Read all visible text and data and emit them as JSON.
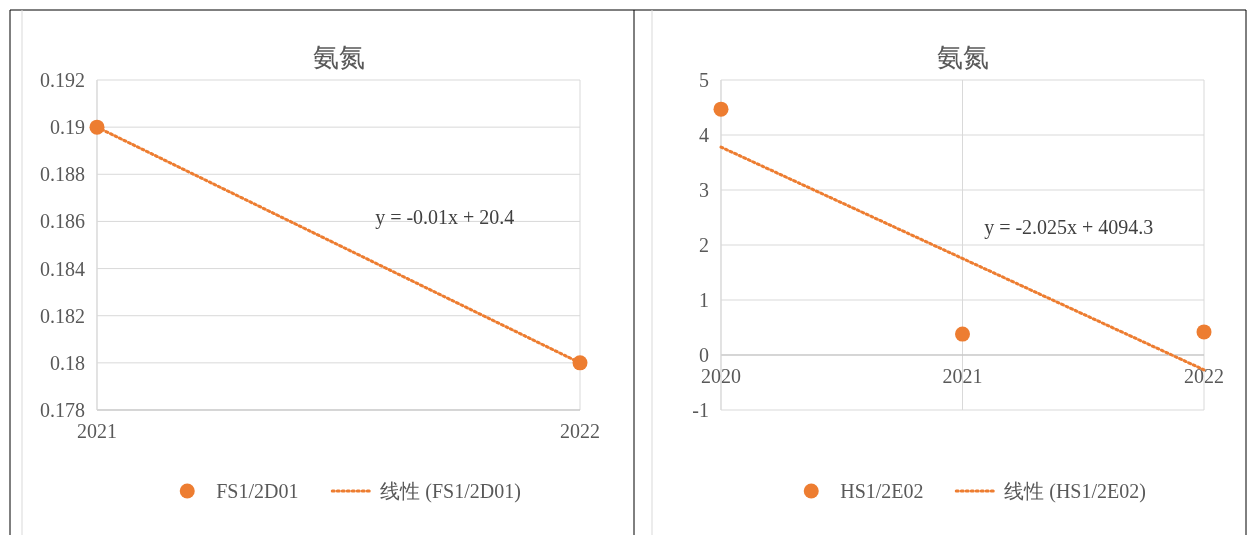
{
  "chart_data": [
    {
      "type": "scatter",
      "title": "氨氮",
      "xlim": [
        2021,
        2022
      ],
      "xticks": [
        2021,
        2022
      ],
      "ylim": [
        0.178,
        0.192
      ],
      "yticks": [
        0.178,
        0.18,
        0.182,
        0.184,
        0.186,
        0.188,
        0.19,
        0.192
      ],
      "grid": true,
      "legend": "bottom",
      "series": [
        {
          "name": "FS1/2D01",
          "color": "#ed7d31",
          "marker": "circle",
          "x": [
            2021,
            2022
          ],
          "values": [
            0.19,
            0.18
          ]
        },
        {
          "type": "line",
          "name": "线性 (FS1/2D01)",
          "color": "#ed7d31",
          "line_style": "dotted",
          "x": [
            2021,
            2022
          ],
          "values": [
            0.19,
            0.18
          ]
        }
      ],
      "annotations": [
        "y = -0.01x + 20.4"
      ]
    },
    {
      "type": "scatter",
      "title": "氨氮",
      "xlim": [
        2020,
        2022
      ],
      "xticks": [
        2020,
        2021,
        2022
      ],
      "ylim": [
        -1,
        5
      ],
      "yticks": [
        -1,
        0,
        1,
        2,
        3,
        4,
        5
      ],
      "grid": true,
      "legend": "bottom",
      "series": [
        {
          "name": "HS1/2E02",
          "color": "#ed7d31",
          "marker": "circle",
          "x": [
            2020,
            2021,
            2022
          ],
          "values": [
            4.47,
            0.38,
            0.42
          ]
        },
        {
          "type": "line",
          "name": "线性 (HS1/2E02)",
          "color": "#ed7d31",
          "line_style": "dotted",
          "x": [
            2020,
            2022
          ],
          "values": [
            3.78,
            -0.27
          ]
        }
      ],
      "annotations": [
        "y = -2.025x + 4094.3"
      ]
    }
  ]
}
